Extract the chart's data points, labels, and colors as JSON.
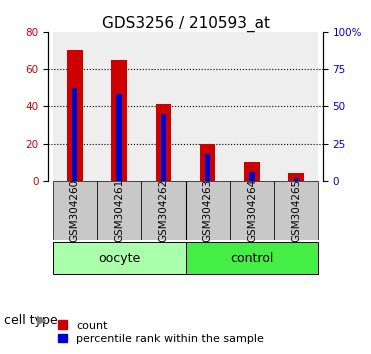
{
  "title": "GDS3256 / 210593_at",
  "categories": [
    "GSM304260",
    "GSM304261",
    "GSM304262",
    "GSM304263",
    "GSM304264",
    "GSM304265"
  ],
  "count_values": [
    70,
    65,
    41,
    20,
    10,
    4
  ],
  "percentile_values": [
    62,
    58,
    45,
    18,
    6,
    2
  ],
  "left_ylim": [
    0,
    80
  ],
  "left_yticks": [
    0,
    20,
    40,
    60,
    80
  ],
  "right_ylim": [
    0,
    100
  ],
  "right_yticks": [
    0,
    25,
    50,
    75,
    100
  ],
  "right_yticklabels": [
    "0",
    "25",
    "50",
    "75",
    "100%"
  ],
  "bar_width": 0.35,
  "blue_bar_width": 0.12,
  "count_color": "#cc0000",
  "percentile_color": "#0000cc",
  "cell_types": [
    {
      "label": "oocyte",
      "indices": [
        0,
        1,
        2
      ],
      "color": "#aaffaa"
    },
    {
      "label": "control",
      "indices": [
        3,
        4,
        5
      ],
      "color": "#44ee44"
    }
  ],
  "cell_type_label": "cell type",
  "legend_count_label": "count",
  "legend_percentile_label": "percentile rank within the sample",
  "bg_color": "#c8c8c8",
  "plot_bg": "#ffffff",
  "title_fontsize": 11,
  "tick_fontsize": 7.5,
  "legend_fontsize": 8,
  "cell_type_fontsize": 9,
  "dotted_lines": [
    20,
    40,
    60
  ]
}
